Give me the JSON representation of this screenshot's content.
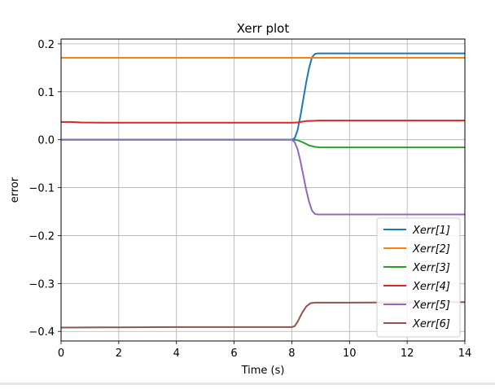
{
  "chart_data": {
    "type": "line",
    "title": "Xerr plot",
    "xlabel": "Time (s)",
    "ylabel": "error",
    "xlim": [
      0,
      14
    ],
    "ylim": [
      -0.42,
      0.21
    ],
    "xticks": [
      0,
      2,
      4,
      6,
      8,
      10,
      12,
      14
    ],
    "xtick_labels": [
      "0",
      "2",
      "4",
      "6",
      "8",
      "10",
      "12",
      "14"
    ],
    "yticks": [
      0.2,
      0.1,
      0.0,
      -0.1,
      -0.2,
      -0.3,
      -0.4
    ],
    "ytick_labels": [
      "0.2",
      "0.1",
      "0.0",
      "−0.1",
      "−0.2",
      "−0.3",
      "−0.4"
    ],
    "grid": true,
    "legend_position": "lower-right",
    "series": [
      {
        "name": "Xerr[1]",
        "color": "#1f77b4",
        "points": [
          [
            0,
            0.0
          ],
          [
            8.0,
            0.0
          ],
          [
            8.1,
            0.003
          ],
          [
            8.2,
            0.02
          ],
          [
            8.3,
            0.05
          ],
          [
            8.4,
            0.085
          ],
          [
            8.5,
            0.12
          ],
          [
            8.6,
            0.15
          ],
          [
            8.7,
            0.172
          ],
          [
            8.8,
            0.179
          ],
          [
            8.9,
            0.18
          ],
          [
            14,
            0.18
          ]
        ]
      },
      {
        "name": "Xerr[2]",
        "color": "#ff7f0e",
        "points": [
          [
            0,
            0.171
          ],
          [
            14,
            0.171
          ]
        ]
      },
      {
        "name": "Xerr[3]",
        "color": "#2ca02c",
        "points": [
          [
            0,
            0.0
          ],
          [
            8.0,
            0.0
          ],
          [
            8.2,
            -0.001
          ],
          [
            8.4,
            -0.006
          ],
          [
            8.6,
            -0.012
          ],
          [
            8.8,
            -0.015
          ],
          [
            9.0,
            -0.016
          ],
          [
            14,
            -0.016
          ]
        ]
      },
      {
        "name": "Xerr[4]",
        "color": "#d62728",
        "points": [
          [
            0,
            0.037
          ],
          [
            0.3,
            0.037
          ],
          [
            0.7,
            0.036
          ],
          [
            1.5,
            0.0355
          ],
          [
            4,
            0.0355
          ],
          [
            6,
            0.0355
          ],
          [
            8.0,
            0.0355
          ],
          [
            8.2,
            0.036
          ],
          [
            8.5,
            0.039
          ],
          [
            8.8,
            0.0395
          ],
          [
            9,
            0.04
          ],
          [
            14,
            0.04
          ]
        ]
      },
      {
        "name": "Xerr[5]",
        "color": "#9467bd",
        "points": [
          [
            0,
            0.0
          ],
          [
            8.0,
            0.0
          ],
          [
            8.1,
            -0.005
          ],
          [
            8.2,
            -0.02
          ],
          [
            8.3,
            -0.045
          ],
          [
            8.4,
            -0.075
          ],
          [
            8.5,
            -0.105
          ],
          [
            8.6,
            -0.13
          ],
          [
            8.7,
            -0.148
          ],
          [
            8.8,
            -0.155
          ],
          [
            8.9,
            -0.156
          ],
          [
            14,
            -0.156
          ]
        ]
      },
      {
        "name": "Xerr[6]",
        "color": "#8c564b",
        "points": [
          [
            0,
            -0.392
          ],
          [
            2,
            -0.3915
          ],
          [
            4,
            -0.391
          ],
          [
            6,
            -0.391
          ],
          [
            8.0,
            -0.391
          ],
          [
            8.1,
            -0.389
          ],
          [
            8.2,
            -0.38
          ],
          [
            8.35,
            -0.362
          ],
          [
            8.5,
            -0.348
          ],
          [
            8.65,
            -0.341
          ],
          [
            8.8,
            -0.34
          ],
          [
            10,
            -0.34
          ],
          [
            14,
            -0.339
          ]
        ]
      }
    ]
  }
}
